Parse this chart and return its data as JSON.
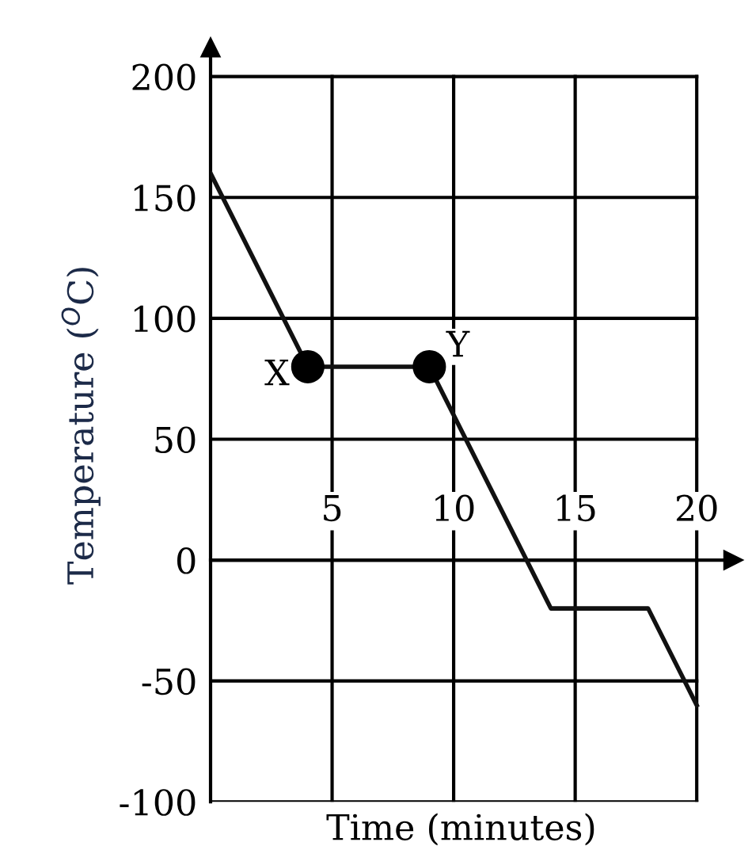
{
  "chart_data": {
    "type": "line",
    "xlabel": "Time (minutes)",
    "ylabel": "Temperature ($^{O}$C)",
    "xlim": [
      0,
      21.5
    ],
    "ylim": [
      -100,
      212
    ],
    "xticks": [
      5,
      10,
      15,
      20
    ],
    "yticks": [
      -100,
      -50,
      0,
      50,
      100,
      150,
      200
    ],
    "grid": true,
    "marker": "none",
    "series": [
      {
        "color": "#111111",
        "x": [
          0,
          4,
          9,
          14,
          18,
          20
        ],
        "values": [
          160,
          80,
          80,
          -20,
          -20,
          -60
        ]
      },
      {
        "type": "scatter",
        "color": "#000000",
        "marker": "circle",
        "x": [
          4,
          9
        ],
        "values": [
          80,
          80
        ]
      }
    ],
    "annotations": [
      {
        "text": "X",
        "x": 4,
        "y": 80
      },
      {
        "text": "Y",
        "x": 9,
        "y": 80
      }
    ]
  }
}
